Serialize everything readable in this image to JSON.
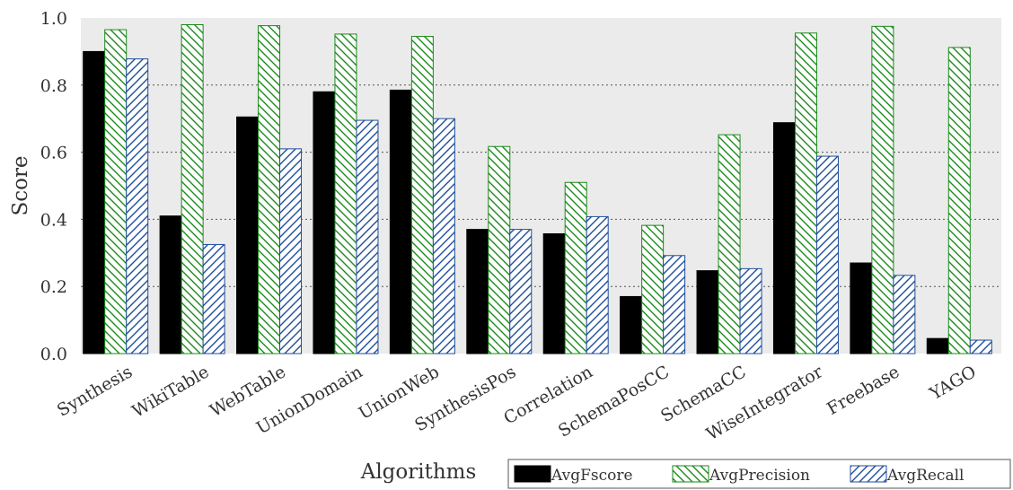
{
  "chart_data": {
    "type": "bar",
    "title": "",
    "xlabel": "Algorithms",
    "ylabel": "Score",
    "ylim": [
      0.0,
      1.0
    ],
    "yticks": [
      "0.0",
      "0.2",
      "0.4",
      "0.6",
      "0.8",
      "1.0"
    ],
    "grid": "horizontal dotted",
    "legend_position": "bottom-right",
    "categories": [
      "Synthesis",
      "WikiTable",
      "WebTable",
      "UnionDomain",
      "UnionWeb",
      "SynthesisPos",
      "Correlation",
      "SchemaPosCC",
      "SchemaCC",
      "WiseIntegrator",
      "Freebase",
      "YAGO"
    ],
    "series": [
      {
        "name": "AvgFscore",
        "color": "#000000",
        "pattern": "solid",
        "values": [
          0.9,
          0.41,
          0.705,
          0.78,
          0.785,
          0.37,
          0.357,
          0.17,
          0.247,
          0.688,
          0.27,
          0.045
        ]
      },
      {
        "name": "AvgPrecision",
        "color": "#1a8a1a",
        "pattern": "backslash-hatch",
        "values": [
          0.965,
          0.98,
          0.977,
          0.952,
          0.945,
          0.617,
          0.51,
          0.382,
          0.652,
          0.955,
          0.975,
          0.912
        ]
      },
      {
        "name": "AvgRecall",
        "color": "#1f4e9a",
        "pattern": "slash-hatch",
        "values": [
          0.878,
          0.325,
          0.61,
          0.695,
          0.7,
          0.37,
          0.408,
          0.292,
          0.253,
          0.588,
          0.233,
          0.04
        ]
      }
    ]
  }
}
